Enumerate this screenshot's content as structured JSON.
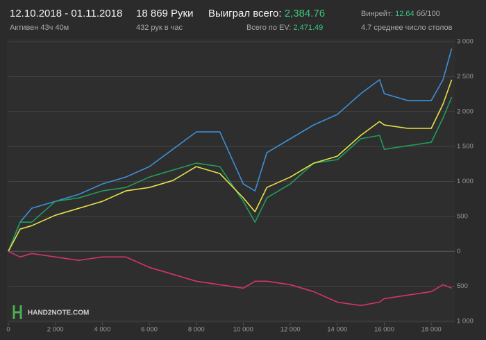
{
  "header": {
    "dates": "12.10.2018 - 01.11.2018",
    "active": "Активен 43ч 40м",
    "hands": "18 869 Руки",
    "hands_per_hour": "432 рук в час",
    "won_label": "Выиграл всего:",
    "won_value": "2,384.76",
    "ev_label": "Всего по EV:",
    "ev_value": "2,471.49",
    "winrate_label": "Винрейт:",
    "winrate_value": "12.64",
    "winrate_unit": "бб/100",
    "tables": "4.7 среднее число столов",
    "logo": "HAND2NOTE.COM"
  },
  "chart_data": {
    "type": "line",
    "x": [
      0,
      500,
      1000,
      2000,
      3000,
      4000,
      5000,
      6000,
      7000,
      8000,
      9000,
      10000,
      10500,
      11000,
      12000,
      13000,
      14000,
      15000,
      15800,
      16000,
      17000,
      18000,
      18500,
      18869
    ],
    "series": [
      {
        "color": "#3d8fd6",
        "values": [
          0,
          417,
          617,
          715,
          815,
          964,
          1063,
          1212,
          1460,
          1709,
          1709,
          964,
          865,
          1411,
          1610,
          1809,
          1958,
          2256,
          2455,
          2256,
          2157,
          2157,
          2455,
          2901
        ]
      },
      {
        "color": "#1e9e5a",
        "values": [
          0,
          417,
          417,
          715,
          765,
          865,
          914,
          1063,
          1162,
          1262,
          1212,
          715,
          417,
          765,
          964,
          1262,
          1312,
          1610,
          1659,
          1460,
          1510,
          1560,
          1908,
          2206
        ]
      },
      {
        "color": "#e8e04a",
        "values": [
          0,
          318,
          368,
          517,
          616,
          715,
          865,
          914,
          1013,
          1212,
          1113,
          765,
          567,
          914,
          1063,
          1262,
          1361,
          1659,
          1858,
          1808,
          1759,
          1759,
          2107,
          2455
        ]
      },
      {
        "color": "#d6336c",
        "values": [
          0,
          -80,
          -30,
          -80,
          -129,
          -80,
          -80,
          -229,
          -328,
          -427,
          -477,
          -527,
          -427,
          -427,
          -477,
          -576,
          -726,
          -775,
          -726,
          -676,
          -626,
          -576,
          -477,
          -527
        ]
      }
    ],
    "xlim": [
      0,
      19000
    ],
    "xticks": [
      0,
      {
        "value": 2000,
        "label": "2 000"
      },
      {
        "value": 4000,
        "label": "4 000"
      },
      {
        "value": 6000,
        "label": "6 000"
      },
      {
        "value": 8000,
        "label": "8 000"
      },
      {
        "value": 10000,
        "label": "10 000"
      },
      {
        "value": 12000,
        "label": "12 000"
      },
      {
        "value": 14000,
        "label": "14 000"
      },
      {
        "value": 16000,
        "label": "16 000"
      },
      {
        "value": 18000,
        "label": "18 000"
      }
    ],
    "ylim": [
      -1000,
      3000
    ],
    "yticks": [
      {
        "value": -1000,
        "label": "1 000"
      },
      {
        "value": -500,
        "label": "500"
      },
      0,
      500,
      {
        "value": 1000,
        "label": "1 000"
      },
      {
        "value": 1500,
        "label": "1 500"
      },
      {
        "value": 2000,
        "label": "2 000"
      },
      {
        "value": 2500,
        "label": "2 500"
      },
      {
        "value": 3000,
        "label": "3 000"
      }
    ],
    "grid": true
  }
}
